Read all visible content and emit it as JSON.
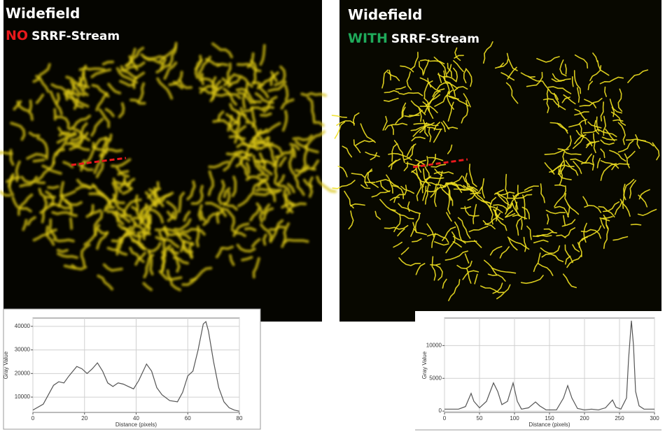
{
  "panels": [
    {
      "title": "Widefield",
      "tag": "NO",
      "tag_color": "#e8191c",
      "subtitle": "SRRF-Stream"
    },
    {
      "title": "Widefield",
      "tag": "WITH",
      "tag_color": "#1faa5a",
      "subtitle": "SRRF-Stream"
    }
  ],
  "chart_data": [
    {
      "type": "line",
      "xlabel": "Distance (pixels)",
      "ylabel": "Gray Value",
      "x": [
        0,
        4,
        8,
        10,
        12,
        14,
        17,
        19,
        21,
        23,
        25,
        27,
        29,
        31,
        33,
        35,
        37,
        39,
        41,
        44,
        46,
        48,
        50,
        53,
        56,
        58,
        60,
        62,
        64,
        66,
        67,
        68,
        70,
        72,
        74,
        76,
        78,
        80
      ],
      "values": [
        4500,
        7000,
        15000,
        16500,
        16000,
        19000,
        23000,
        22000,
        20000,
        22000,
        24500,
        21000,
        16000,
        14500,
        16000,
        15500,
        14500,
        13500,
        17000,
        24000,
        21000,
        14000,
        11000,
        8500,
        8000,
        12000,
        19000,
        21000,
        30000,
        41000,
        42000,
        38000,
        25000,
        14000,
        8000,
        5500,
        4500,
        4000
      ],
      "color": "#555555",
      "xlim": [
        0,
        80
      ],
      "xticks": [
        0,
        20,
        40,
        60,
        80
      ],
      "ylim": [
        3500,
        43500
      ],
      "yticks": [
        10000,
        20000,
        30000,
        40000
      ],
      "grid": true
    },
    {
      "type": "line",
      "xlabel": "Distance (pixels)",
      "ylabel": "Gray Value",
      "x": [
        0,
        20,
        30,
        38,
        42,
        50,
        60,
        70,
        76,
        82,
        90,
        98,
        104,
        110,
        120,
        130,
        136,
        145,
        160,
        170,
        176,
        182,
        190,
        200,
        210,
        220,
        230,
        240,
        245,
        252,
        260,
        263,
        267,
        270,
        273,
        278,
        285,
        300
      ],
      "values": [
        300,
        300,
        700,
        2700,
        1500,
        500,
        1500,
        4300,
        3000,
        1000,
        1500,
        4300,
        1500,
        300,
        500,
        1400,
        800,
        200,
        200,
        2000,
        3900,
        2000,
        400,
        200,
        300,
        200,
        500,
        1700,
        600,
        300,
        2000,
        8000,
        13800,
        10000,
        3000,
        800,
        300,
        300
      ],
      "color": "#555555",
      "xlim": [
        0,
        300
      ],
      "xticks": [
        0,
        50,
        100,
        150,
        200,
        250,
        300
      ],
      "ylim": [
        -200,
        14200
      ],
      "yticks": [
        0,
        5000,
        10000
      ],
      "grid": true
    }
  ]
}
